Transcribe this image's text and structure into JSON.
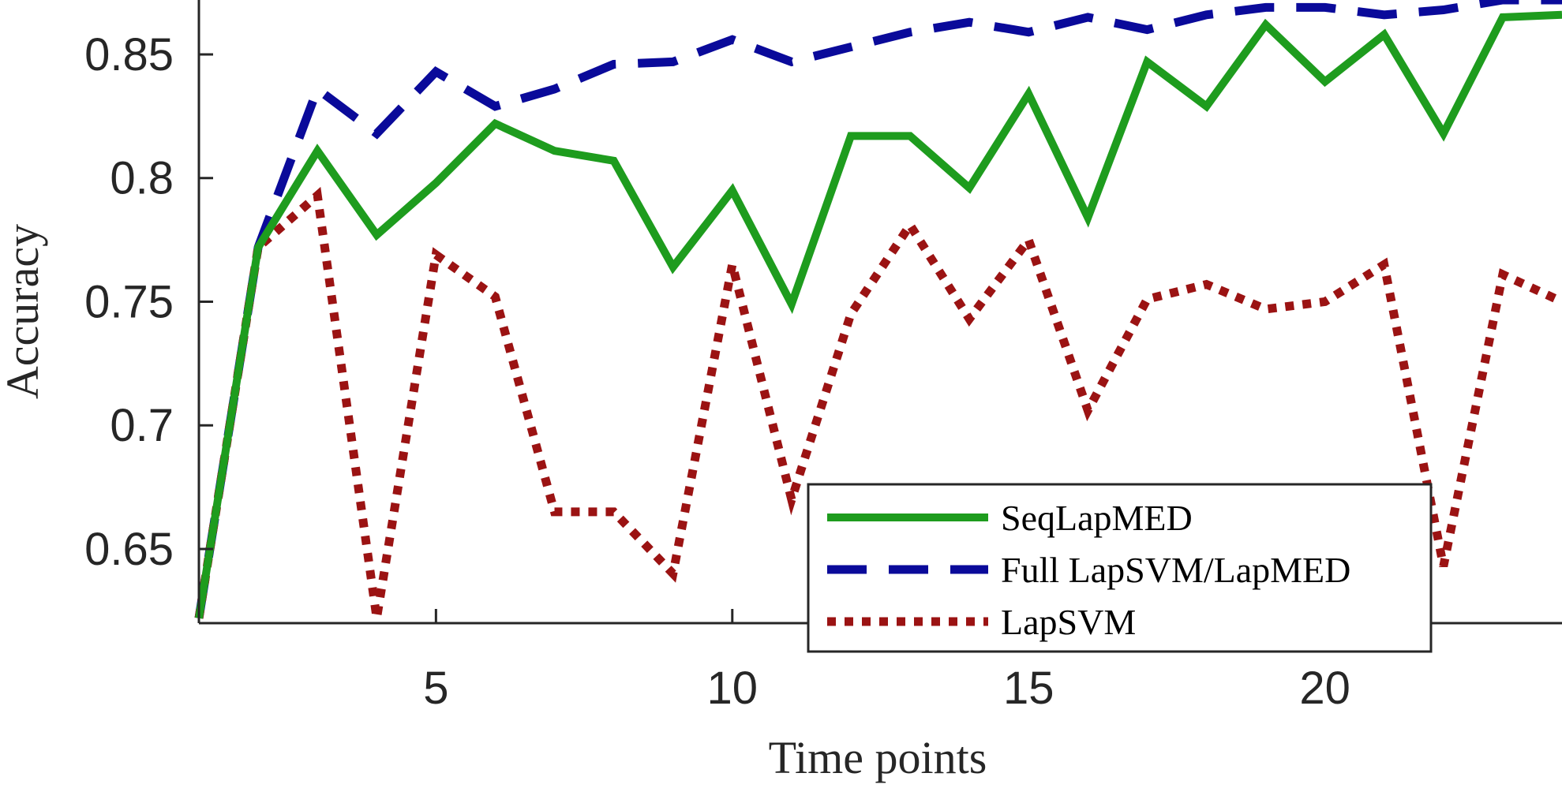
{
  "chart_data": {
    "type": "line",
    "xlabel": "Time points",
    "ylabel": "Accuracy",
    "xlim": [
      1,
      24
    ],
    "ylim": [
      0.62,
      0.872
    ],
    "xticks": [
      5,
      10,
      15,
      20
    ],
    "yticks": [
      0.65,
      0.7,
      0.75,
      0.8,
      0.85
    ],
    "ytick_labels": [
      "0.65",
      "0.7",
      "0.75",
      "0.8",
      "0.85"
    ],
    "legend_position": "bottom-right",
    "x": [
      1,
      2,
      3,
      4,
      5,
      6,
      7,
      8,
      9,
      10,
      11,
      12,
      13,
      14,
      15,
      16,
      17,
      18,
      19,
      20,
      21,
      22,
      23,
      24
    ],
    "series": [
      {
        "name": "SeqLapMED",
        "color": "#1e9c1e",
        "style": "solid",
        "values": [
          0.622,
          0.772,
          0.811,
          0.777,
          0.798,
          0.822,
          0.811,
          0.807,
          0.764,
          0.795,
          0.749,
          0.817,
          0.817,
          0.796,
          0.834,
          0.784,
          0.847,
          0.829,
          0.862,
          0.839,
          0.858,
          0.818,
          0.865,
          0.866
        ]
      },
      {
        "name": "Full LapSVM/LapMED",
        "color": "#0a0a9a",
        "style": "dashed",
        "values": [
          0.622,
          0.772,
          0.836,
          0.818,
          0.843,
          0.829,
          0.836,
          0.846,
          0.847,
          0.856,
          0.847,
          0.853,
          0.859,
          0.863,
          0.859,
          0.865,
          0.86,
          0.866,
          0.869,
          0.869,
          0.866,
          0.868,
          0.872,
          0.872
        ]
      },
      {
        "name": "LapSVM",
        "color": "#9b1313",
        "style": "dotted",
        "values": [
          0.622,
          0.772,
          0.793,
          0.622,
          0.769,
          0.752,
          0.665,
          0.665,
          0.64,
          0.765,
          0.67,
          0.745,
          0.781,
          0.743,
          0.775,
          0.706,
          0.751,
          0.757,
          0.747,
          0.75,
          0.765,
          0.643,
          0.761,
          0.75
        ]
      }
    ]
  }
}
